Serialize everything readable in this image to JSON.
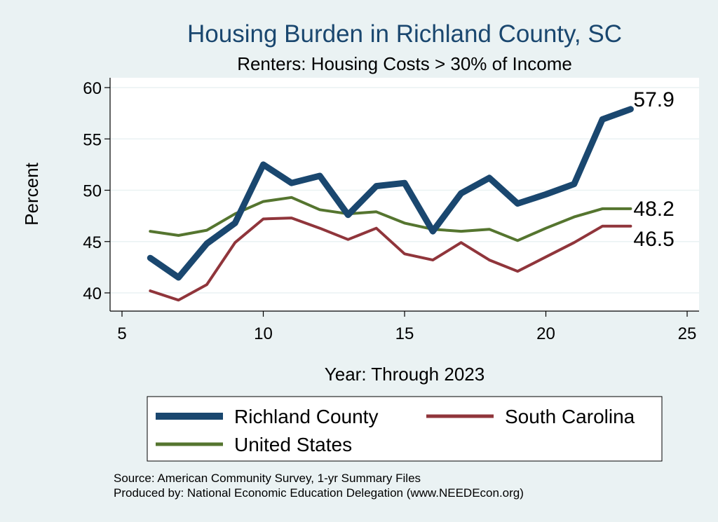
{
  "chart_data": {
    "type": "line",
    "title": "Housing Burden in Richland County, SC",
    "subtitle": "Renters: Housing Costs > 30% of Income",
    "xlabel": "Year: Through 2023",
    "ylabel": "Percent",
    "xlim": [
      5,
      25
    ],
    "ylim": [
      39,
      61
    ],
    "xticks": [
      5,
      10,
      15,
      20,
      25
    ],
    "yticks": [
      40,
      45,
      50,
      55,
      60
    ],
    "grid": true,
    "colors": {
      "richland": "#1a476f",
      "south_carolina": "#90353b",
      "united_states": "#55752f",
      "title": "#1a476f"
    },
    "x": [
      6,
      7,
      8,
      9,
      10,
      11,
      12,
      13,
      14,
      15,
      16,
      17,
      18,
      19,
      20,
      21,
      22,
      23
    ],
    "series": [
      {
        "key": "richland",
        "name": "Richland County",
        "values": [
          43.4,
          41.5,
          44.8,
          46.8,
          52.5,
          50.7,
          51.4,
          47.6,
          50.4,
          50.7,
          46.0,
          49.7,
          51.2,
          48.7,
          49.6,
          50.6,
          56.9,
          57.9
        ],
        "end_label": "57.9"
      },
      {
        "key": "south_carolina",
        "name": "South Carolina",
        "values": [
          40.2,
          39.3,
          40.8,
          44.9,
          47.2,
          47.3,
          46.3,
          45.2,
          46.3,
          43.8,
          43.2,
          44.9,
          43.2,
          42.1,
          43.5,
          44.9,
          46.5,
          46.5
        ],
        "end_label": "46.5"
      },
      {
        "key": "united_states",
        "name": "United States",
        "values": [
          46.0,
          45.6,
          46.1,
          47.7,
          48.9,
          49.3,
          48.1,
          47.7,
          47.9,
          46.8,
          46.2,
          46.0,
          46.2,
          45.1,
          46.3,
          47.4,
          48.2,
          48.2
        ],
        "end_label": "48.2"
      }
    ],
    "legend": {
      "position": "bottom",
      "columns": 2
    },
    "notes": [
      "Source: American Community Survey, 1-yr Summary Files",
      "Produced by: National Economic Education Delegation (www.NEEDEcon.org)"
    ]
  }
}
